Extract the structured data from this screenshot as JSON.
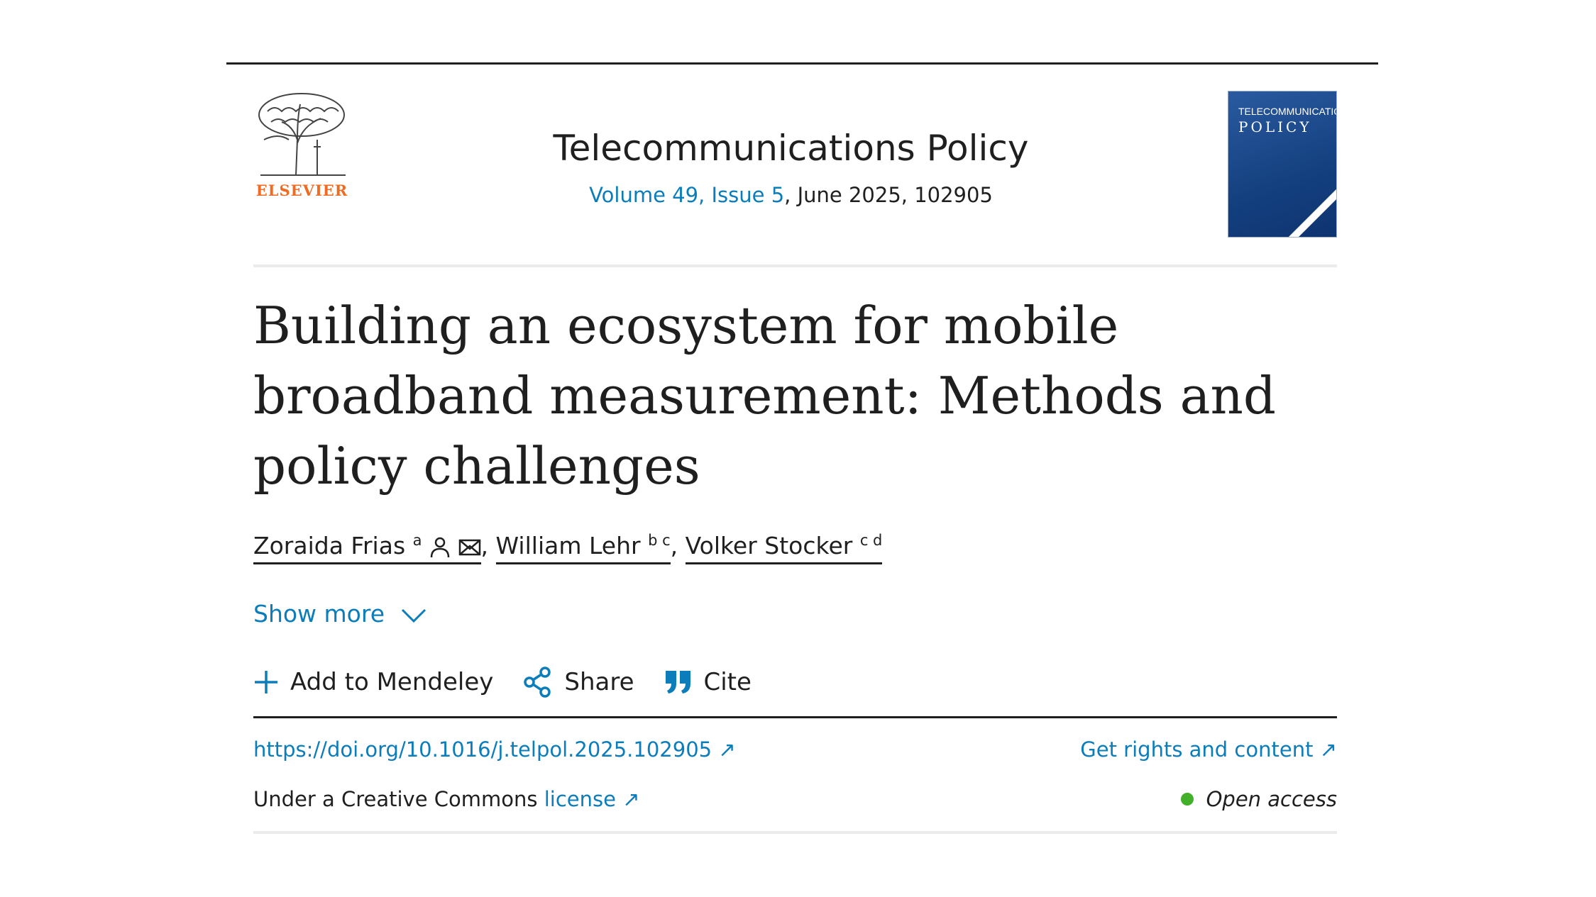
{
  "publisher": {
    "name": "ELSEVIER",
    "brand_color": "#f06a22"
  },
  "journal": {
    "title": "Telecommunications Policy",
    "volume_link": "Volume 49, Issue 5",
    "date_number": ", June 2025, 102905",
    "cover_title": "TELECOMMUNICATIONS",
    "cover_subtitle": "POLICY"
  },
  "article": {
    "title": "Building an ecosystem for mobile broadband measurement: Methods and policy challenges",
    "authors": [
      {
        "name": "Zoraida Frias",
        "sup": "a",
        "icons": [
          "person-icon",
          "mail-icon"
        ]
      },
      {
        "name": "William Lehr",
        "sup": "b c"
      },
      {
        "name": "Volker Stocker",
        "sup": "c d"
      }
    ],
    "separator": ","
  },
  "show_more": "Show more",
  "actions": {
    "mendeley": "Add to Mendeley",
    "share": "Share",
    "cite": "Cite"
  },
  "doi": "https://doi.org/10.1016/j.telpol.2025.102905",
  "rights": "Get rights and content",
  "license_prefix": "Under a Creative Commons ",
  "license_link": "license",
  "open_access": "Open access",
  "colors": {
    "link": "#0c7dbb",
    "open_access_dot": "#43b02a",
    "text": "#1f1f1f"
  }
}
